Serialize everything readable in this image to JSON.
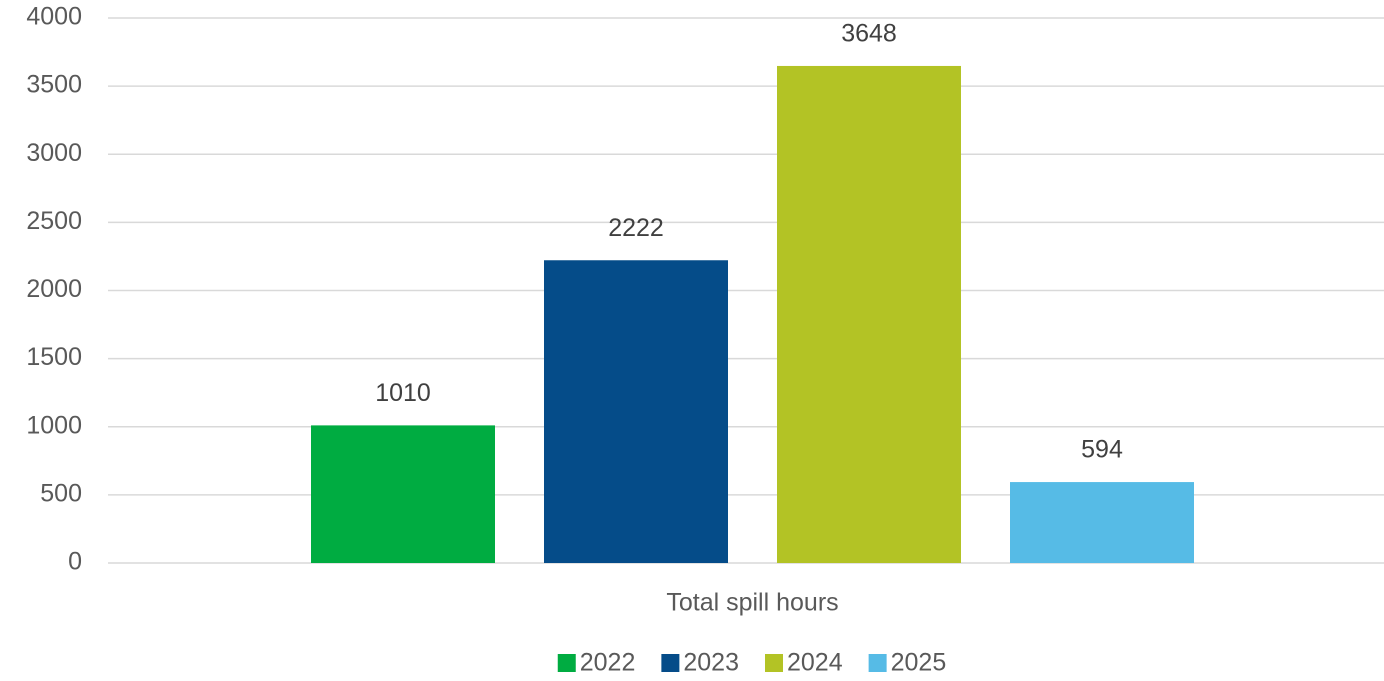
{
  "chart_data": {
    "type": "bar",
    "categories": [
      "Total spill hours"
    ],
    "series": [
      {
        "name": "2022",
        "color": "#00ac41",
        "values": [
          1010
        ]
      },
      {
        "name": "2023",
        "color": "#054c89",
        "values": [
          2222
        ]
      },
      {
        "name": "2024",
        "color": "#b3c325",
        "values": [
          3648
        ]
      },
      {
        "name": "2025",
        "color": "#56bbe6",
        "values": [
          594
        ]
      }
    ],
    "ylim": [
      0,
      4000
    ],
    "yticks": [
      0,
      500,
      1000,
      1500,
      2000,
      2500,
      3000,
      3500,
      4000
    ],
    "grid": true,
    "legend": "bottom"
  }
}
